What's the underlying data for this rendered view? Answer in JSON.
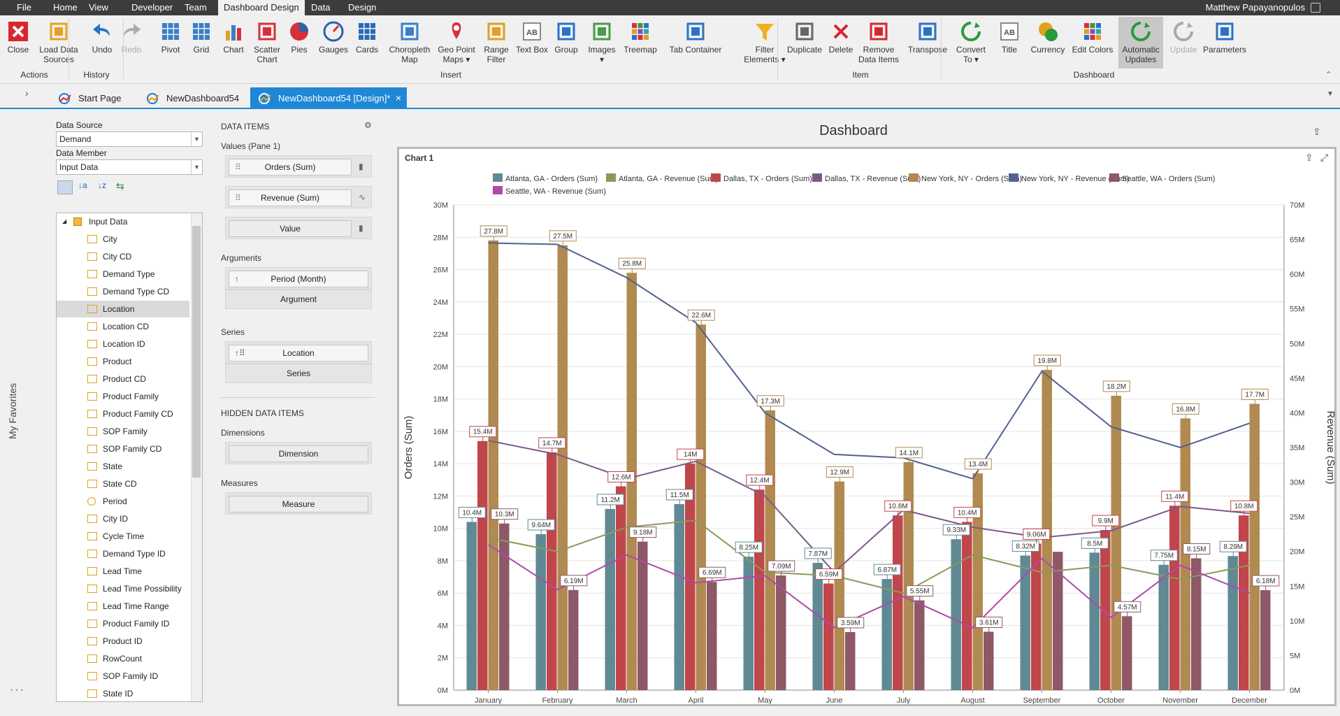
{
  "menu": {
    "items": [
      "File",
      "Home",
      "View",
      "Developer",
      "Team",
      "Dashboard Design",
      "Data",
      "Design"
    ],
    "active": "Dashboard Design",
    "user": "Matthew Papayanopulos"
  },
  "ribbon": {
    "buttons": [
      {
        "label": "Close",
        "icon": "close-red-x-icon"
      },
      {
        "label": "Load Data\nSources",
        "icon": "load-data-sources-icon"
      },
      {
        "label": "Undo",
        "icon": "undo-arrow-icon"
      },
      {
        "label": "Redo",
        "icon": "redo-arrow-icon"
      },
      {
        "label": "Pivot",
        "icon": "pivot-grid-icon"
      },
      {
        "label": "Grid",
        "icon": "grid-icon"
      },
      {
        "label": "Chart",
        "icon": "bar-chart-icon"
      },
      {
        "label": "Scatter\nChart",
        "icon": "scatter-chart-icon"
      },
      {
        "label": "Pies",
        "icon": "pie-chart-icon"
      },
      {
        "label": "Gauges",
        "icon": "gauge-icon"
      },
      {
        "label": "Cards",
        "icon": "cards-icon"
      },
      {
        "label": "Choropleth\nMap",
        "icon": "choropleth-map-icon"
      },
      {
        "label": "Geo Point\nMaps ▾",
        "icon": "geo-point-map-icon"
      },
      {
        "label": "Range\nFilter",
        "icon": "range-filter-icon"
      },
      {
        "label": "Text Box",
        "icon": "text-box-icon"
      },
      {
        "label": "Group",
        "icon": "group-icon"
      },
      {
        "label": "Images\n▾",
        "icon": "image-icon"
      },
      {
        "label": "Treemap",
        "icon": "treemap-icon"
      },
      {
        "label": "Tab Container",
        "icon": "tab-container-icon"
      },
      {
        "label": "Filter\nElements ▾",
        "icon": "filter-funnel-icon"
      },
      {
        "label": "Duplicate",
        "icon": "duplicate-icon"
      },
      {
        "label": "Delete",
        "icon": "delete-x-icon"
      },
      {
        "label": "Remove\nData Items",
        "icon": "eraser-icon"
      },
      {
        "label": "Transpose",
        "icon": "transpose-icon"
      },
      {
        "label": "Convert\nTo ▾",
        "icon": "convert-icon"
      },
      {
        "label": "Title",
        "icon": "title-ab-icon"
      },
      {
        "label": "Currency",
        "icon": "currency-icon"
      },
      {
        "label": "Edit Colors",
        "icon": "palette-icon"
      },
      {
        "label": "Automatic\nUpdates",
        "icon": "auto-update-icon"
      },
      {
        "label": "Update",
        "icon": "update-icon"
      },
      {
        "label": "Parameters",
        "icon": "parameters-icon"
      }
    ],
    "groups": [
      "Actions",
      "History",
      "Insert",
      "Item",
      "Dashboard"
    ]
  },
  "tabs": [
    {
      "label": "Start Page",
      "icon": "start-page-icon"
    },
    {
      "label": "NewDashboard54",
      "icon": "dashboard-icon"
    },
    {
      "label": "NewDashboard54 [Design]*",
      "icon": "dashboard-design-icon"
    }
  ],
  "sidebar": {
    "favorites": "My Favorites"
  },
  "fields": {
    "data_source_label": "Data Source",
    "data_source": "Demand",
    "data_member_label": "Data Member",
    "data_member": "Input Data",
    "root": "Input Data",
    "items": [
      {
        "name": "City",
        "type": "ab"
      },
      {
        "name": "City CD",
        "type": "ab"
      },
      {
        "name": "Demand Type",
        "type": "ab"
      },
      {
        "name": "Demand Type CD",
        "type": "ab"
      },
      {
        "name": "Location",
        "type": "ab"
      },
      {
        "name": "Location CD",
        "type": "ab"
      },
      {
        "name": "Location ID",
        "type": "ab"
      },
      {
        "name": "Product",
        "type": "ab"
      },
      {
        "name": "Product CD",
        "type": "ab"
      },
      {
        "name": "Product Family",
        "type": "ab"
      },
      {
        "name": "Product Family CD",
        "type": "ab"
      },
      {
        "name": "SOP Family",
        "type": "ab"
      },
      {
        "name": "SOP Family CD",
        "type": "ab"
      },
      {
        "name": "State",
        "type": "ab"
      },
      {
        "name": "State CD",
        "type": "ab"
      },
      {
        "name": "Period",
        "type": "clock"
      },
      {
        "name": "City ID",
        "type": "123"
      },
      {
        "name": "Cycle Time",
        "type": "123"
      },
      {
        "name": "Demand Type ID",
        "type": "123"
      },
      {
        "name": "Lead Time",
        "type": "123"
      },
      {
        "name": "Lead Time Possibility",
        "type": "123"
      },
      {
        "name": "Lead Time Range",
        "type": "123"
      },
      {
        "name": "Product Family ID",
        "type": "123"
      },
      {
        "name": "Product ID",
        "type": "123"
      },
      {
        "name": "RowCount",
        "type": "123"
      },
      {
        "name": "SOP Family ID",
        "type": "123"
      },
      {
        "name": "State ID",
        "type": "123"
      }
    ],
    "selected": "Location"
  },
  "data_items": {
    "title": "DATA ITEMS",
    "values_label": "Values (Pane 1)",
    "values": [
      "Orders (Sum)",
      "Revenue (Sum)",
      "Value"
    ],
    "arguments_label": "Arguments",
    "arguments": [
      "Period (Month)",
      "Argument"
    ],
    "series_label": "Series",
    "series": [
      "Location",
      "Series"
    ],
    "hidden_title": "HIDDEN DATA ITEMS",
    "dimensions_label": "Dimensions",
    "dimension": "Dimension",
    "measures_label": "Measures",
    "measure": "Measure"
  },
  "dashboard": {
    "title": "Dashboard",
    "chart_title": "Chart 1"
  },
  "chart_data": {
    "type": "bar",
    "categories": [
      "January",
      "February",
      "March",
      "April",
      "May",
      "June",
      "July",
      "August",
      "September",
      "October",
      "November",
      "December"
    ],
    "ylabel": "Orders (Sum)",
    "ylabel2": "Revenue (Sum)",
    "ylim": [
      0,
      30000000
    ],
    "ylim2": [
      0,
      70000000
    ],
    "yticks": [
      "0M",
      "2M",
      "4M",
      "6M",
      "8M",
      "10M",
      "12M",
      "14M",
      "16M",
      "18M",
      "20M",
      "22M",
      "24M",
      "26M",
      "28M",
      "30M"
    ],
    "yticks2": [
      "0M",
      "5M",
      "10M",
      "15M",
      "20M",
      "25M",
      "30M",
      "35M",
      "40M",
      "45M",
      "50M",
      "55M",
      "60M",
      "65M",
      "70M"
    ],
    "grid": true,
    "legend_position": "top",
    "series": [
      {
        "name": "Atlanta, GA - Orders (Sum)",
        "kind": "bar",
        "axis": "left",
        "color": "#5f8a94",
        "values": [
          10400000,
          9640000,
          11200000,
          11500000,
          8250000,
          7870000,
          6870000,
          9330000,
          8320000,
          8500000,
          7750000,
          8290000
        ],
        "labels": [
          "10.4M",
          "9.64M",
          "11.2M",
          "11.5M",
          "8.25M",
          "7.87M",
          "6.87M",
          "9.33M",
          "8.32M",
          "8.5M",
          "7.75M",
          "8.29M"
        ]
      },
      {
        "name": "Atlanta, GA - Revenue (Sum)",
        "kind": "line",
        "axis": "right",
        "color": "#8a9a5b",
        "values": [
          22000000,
          20000000,
          23500000,
          24500000,
          17000000,
          16500000,
          14000000,
          19500000,
          17000000,
          18000000,
          16000000,
          18000000
        ]
      },
      {
        "name": "Dallas, TX - Orders (Sum)",
        "kind": "bar",
        "axis": "left",
        "color": "#c0464b",
        "values": [
          15400000,
          14700000,
          12600000,
          14000000,
          12400000,
          6590000,
          10800000,
          10400000,
          9060000,
          9900000,
          11400000,
          10800000
        ],
        "labels": [
          "15.4M",
          "14.7M",
          "12.6M",
          "14M",
          "12.4M",
          "6.59M",
          "10.8M",
          "10.4M",
          "9.06M",
          "9.9M",
          "11.4M",
          "10.8M"
        ]
      },
      {
        "name": "Dallas, TX - Revenue (Sum)",
        "kind": "line",
        "axis": "right",
        "color": "#7b5a8a",
        "values": [
          36000000,
          34000000,
          30500000,
          33000000,
          28000000,
          17000000,
          26000000,
          23500000,
          22000000,
          23000000,
          26500000,
          25500000
        ]
      },
      {
        "name": "New York, NY - Orders (Sum)",
        "kind": "bar",
        "axis": "left",
        "color": "#b08a50",
        "values": [
          27800000,
          27500000,
          25800000,
          22600000,
          17300000,
          12900000,
          14100000,
          13400000,
          19800000,
          18200000,
          16800000,
          17700000
        ],
        "labels": [
          "27.8M",
          "27.5M",
          "25.8M",
          "22.6M",
          "17.3M",
          "12.9M",
          "14.1M",
          "13.4M",
          "19.8M",
          "18.2M",
          "16.8M",
          "17.7M"
        ]
      },
      {
        "name": "New York, NY - Revenue (Sum)",
        "kind": "line",
        "axis": "right",
        "color": "#50628e",
        "values": [
          64500000,
          64300000,
          59500000,
          53000000,
          40000000,
          34000000,
          33500000,
          30500000,
          46000000,
          38000000,
          35000000,
          38500000
        ]
      },
      {
        "name": "Seattle, WA - Orders (Sum)",
        "kind": "bar",
        "axis": "left",
        "color": "#8e5866",
        "values": [
          10300000,
          6190000,
          9180000,
          6690000,
          7090000,
          3590000,
          5550000,
          3610000,
          8550000,
          4570000,
          8150000,
          6180000
        ],
        "labels": [
          "10.3M",
          "6.19M",
          "9.18M",
          "6.69M",
          "7.09M",
          "3.59M",
          "5.55M",
          "3.61M",
          "",
          "4.57M",
          "8.15M",
          "6.18M"
        ]
      },
      {
        "name": "Seattle, WA - Revenue (Sum)",
        "kind": "line",
        "axis": "right",
        "color": "#b04aa8",
        "values": [
          21000000,
          14500000,
          19500000,
          15500000,
          16500000,
          9000000,
          13500000,
          9000000,
          19000000,
          10500000,
          18000000,
          14000000
        ]
      }
    ]
  }
}
